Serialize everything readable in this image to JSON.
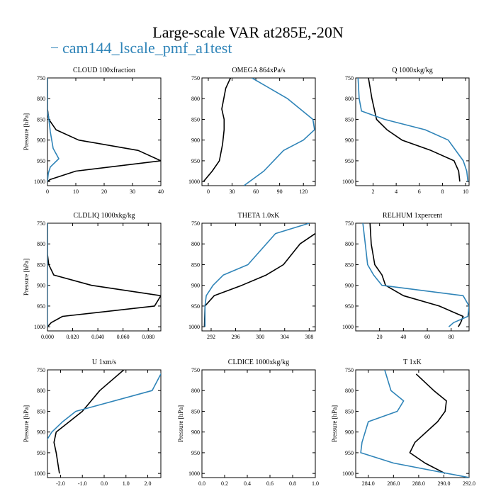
{
  "title": "Large-scale VAR at285E,-20N",
  "legend": {
    "label": "cam144_lscale_pmf_a1test",
    "color": "#2f84b8"
  },
  "colors": {
    "obs": "#000000",
    "model": "#2f84b8"
  },
  "chart_data": [
    {
      "type": "line",
      "title": "CLOUD  100xfraction",
      "ylabel": "Pressure [hPa]",
      "xlim": [
        0,
        40
      ],
      "ylim": [
        1010,
        750
      ],
      "xticks": [
        "0",
        "10",
        "20",
        "30",
        "40"
      ],
      "yticks": [
        "750",
        "800",
        "850",
        "900",
        "950",
        "1000"
      ],
      "series": [
        {
          "color": "#000000",
          "x": [
            0,
            0,
            0.5,
            3,
            11,
            32,
            40,
            10,
            1,
            0
          ],
          "y": [
            750,
            825,
            850,
            875,
            900,
            925,
            950,
            975,
            995,
            1000
          ]
        },
        {
          "color": "#2f84b8",
          "x": [
            0,
            0,
            0.5,
            1,
            2,
            4,
            1,
            0.3,
            0
          ],
          "y": [
            750,
            830,
            850,
            880,
            920,
            945,
            965,
            980,
            1000
          ]
        }
      ]
    },
    {
      "type": "line",
      "title": "OMEGA  864xPa/s",
      "ylabel": "",
      "xlim": [
        -8,
        135
      ],
      "ylim": [
        1010,
        750
      ],
      "xticks": [
        "0",
        "30",
        "60",
        "90",
        "120"
      ],
      "yticks": [
        "750",
        "800",
        "850",
        "900",
        "950",
        "1000"
      ],
      "series": [
        {
          "color": "#000000",
          "x": [
            28,
            22,
            17,
            20,
            20,
            18,
            14,
            5,
            -6
          ],
          "y": [
            750,
            775,
            825,
            850,
            875,
            910,
            950,
            975,
            1000
          ]
        },
        {
          "color": "#2f84b8",
          "x": [
            55,
            100,
            132,
            134,
            120,
            95,
            70,
            45
          ],
          "y": [
            750,
            800,
            850,
            875,
            900,
            925,
            975,
            1010
          ]
        }
      ]
    },
    {
      "type": "line",
      "title": "Q  1000xkg/kg",
      "ylabel": "",
      "xlim": [
        0.5,
        10.3
      ],
      "ylim": [
        1010,
        750
      ],
      "xticks": [
        "2",
        "4",
        "6",
        "8",
        "10"
      ],
      "yticks": [
        "750",
        "800",
        "850",
        "900",
        "950",
        "1000"
      ],
      "series": [
        {
          "color": "#000000",
          "x": [
            1.6,
            1.9,
            2.3,
            3.2,
            4.5,
            7.0,
            9.0,
            9.4,
            9.5
          ],
          "y": [
            750,
            800,
            850,
            875,
            900,
            925,
            950,
            975,
            1000
          ]
        },
        {
          "color": "#2f84b8",
          "x": [
            0.7,
            0.8,
            1.0,
            3.0,
            6.5,
            8.5,
            9.8,
            10.1,
            10.2
          ],
          "y": [
            750,
            800,
            830,
            850,
            875,
            900,
            950,
            975,
            1000
          ]
        }
      ]
    },
    {
      "type": "line",
      "title": "CLDLIQ  1000xkg/kg",
      "ylabel": "Pressure [hPa]",
      "xlim": [
        0,
        0.09
      ],
      "ylim": [
        1010,
        750
      ],
      "xticks": [
        "0.000",
        "0.020",
        "0.040",
        "0.060",
        "0.080"
      ],
      "yticks": [
        "750",
        "800",
        "850",
        "900",
        "950",
        "1000"
      ],
      "series": [
        {
          "color": "#000000",
          "x": [
            0,
            0,
            0.001,
            0.005,
            0.035,
            0.09,
            0.085,
            0.012,
            0.003,
            0
          ],
          "y": [
            750,
            825,
            850,
            875,
            900,
            925,
            950,
            975,
            990,
            1000
          ]
        },
        {
          "color": "#2f84b8",
          "x": [
            0,
            0,
            0
          ],
          "y": [
            750,
            900,
            1000
          ]
        }
      ]
    },
    {
      "type": "line",
      "title": "THETA  1.0xK",
      "ylabel": "",
      "xlim": [
        290.5,
        309
      ],
      "ylim": [
        1010,
        750
      ],
      "xticks": [
        "292",
        "296",
        "300",
        "304",
        "308"
      ],
      "yticks": [
        "750",
        "800",
        "850",
        "900",
        "950",
        "1000"
      ],
      "series": [
        {
          "color": "#000000",
          "x": [
            309,
            306.5,
            303.8,
            301,
            297,
            292.5,
            291,
            290.9
          ],
          "y": [
            775,
            800,
            850,
            875,
            900,
            925,
            950,
            1000
          ]
        },
        {
          "color": "#2f84b8",
          "x": [
            308,
            302.5,
            298,
            294,
            292.3,
            291.2,
            291.0,
            291.0
          ],
          "y": [
            750,
            775,
            850,
            875,
            900,
            925,
            950,
            1000
          ]
        }
      ]
    },
    {
      "type": "line",
      "title": "RELHUM  1xpercent",
      "ylabel": "",
      "xlim": [
        0,
        95
      ],
      "ylim": [
        1010,
        750
      ],
      "xticks": [
        "20",
        "40",
        "60",
        "80"
      ],
      "yticks": [
        "750",
        "800",
        "850",
        "900",
        "950",
        "1000"
      ],
      "series": [
        {
          "color": "#000000",
          "x": [
            12,
            13,
            16,
            22,
            25,
            40,
            70,
            90,
            88,
            86
          ],
          "y": [
            750,
            800,
            850,
            875,
            900,
            925,
            950,
            975,
            990,
            1000
          ]
        },
        {
          "color": "#2f84b8",
          "x": [
            6,
            8,
            10,
            15,
            22,
            90,
            95,
            94,
            82,
            78
          ],
          "y": [
            750,
            800,
            850,
            875,
            900,
            925,
            950,
            975,
            990,
            1000
          ]
        }
      ]
    },
    {
      "type": "line",
      "title": "U  1xm/s",
      "ylabel": "Pressure [hPa]",
      "xlim": [
        -2.6,
        2.6
      ],
      "ylim": [
        1010,
        750
      ],
      "xticks": [
        "-2.0",
        "-1.0",
        "0.0",
        "1.0",
        "2.0"
      ],
      "yticks": [
        "750",
        "800",
        "850",
        "900",
        "950",
        "1000"
      ],
      "series": [
        {
          "color": "#000000",
          "x": [
            0.9,
            -0.2,
            -1.0,
            -1.6,
            -2.2,
            -2.3,
            -2.2,
            -2.05
          ],
          "y": [
            750,
            800,
            850,
            875,
            900,
            925,
            950,
            1000
          ]
        },
        {
          "color": "#2f84b8",
          "x": [
            2.7,
            2.2,
            -1.3,
            -1.9,
            -2.4,
            -2.7,
            -2.8
          ],
          "y": [
            750,
            800,
            850,
            875,
            900,
            925,
            1000
          ]
        }
      ]
    },
    {
      "type": "line",
      "title": "CLDICE  1000xkg/kg",
      "ylabel": "Pressure [hPa]",
      "xlim": [
        0,
        1
      ],
      "ylim": [
        1010,
        750
      ],
      "xticks": [
        "0.0",
        "0.2",
        "0.4",
        "0.6",
        "0.8",
        "1.0"
      ],
      "yticks": [
        "750",
        "800",
        "850",
        "900",
        "950",
        "1000"
      ],
      "series": []
    },
    {
      "type": "line",
      "title": "T  1xK",
      "ylabel": "Pressure [hPa]",
      "xlim": [
        283,
        292
      ],
      "ylim": [
        1010,
        750
      ],
      "xticks": [
        "284.0",
        "286.0",
        "288.0",
        "290.0",
        "292.0"
      ],
      "yticks": [
        "750",
        "800",
        "850",
        "900",
        "950",
        "1000"
      ],
      "series": [
        {
          "color": "#000000",
          "x": [
            287.8,
            289.2,
            290.2,
            290.1,
            289.5,
            287.7,
            287.3,
            288.5,
            290.1
          ],
          "y": [
            760,
            800,
            825,
            850,
            875,
            925,
            950,
            975,
            1000
          ]
        },
        {
          "color": "#2f84b8",
          "x": [
            285.3,
            285.8,
            286.8,
            286.3,
            284.0,
            283.5,
            283.4,
            286.0,
            292.0
          ],
          "y": [
            750,
            800,
            825,
            850,
            875,
            925,
            950,
            975,
            1010
          ]
        }
      ]
    }
  ]
}
